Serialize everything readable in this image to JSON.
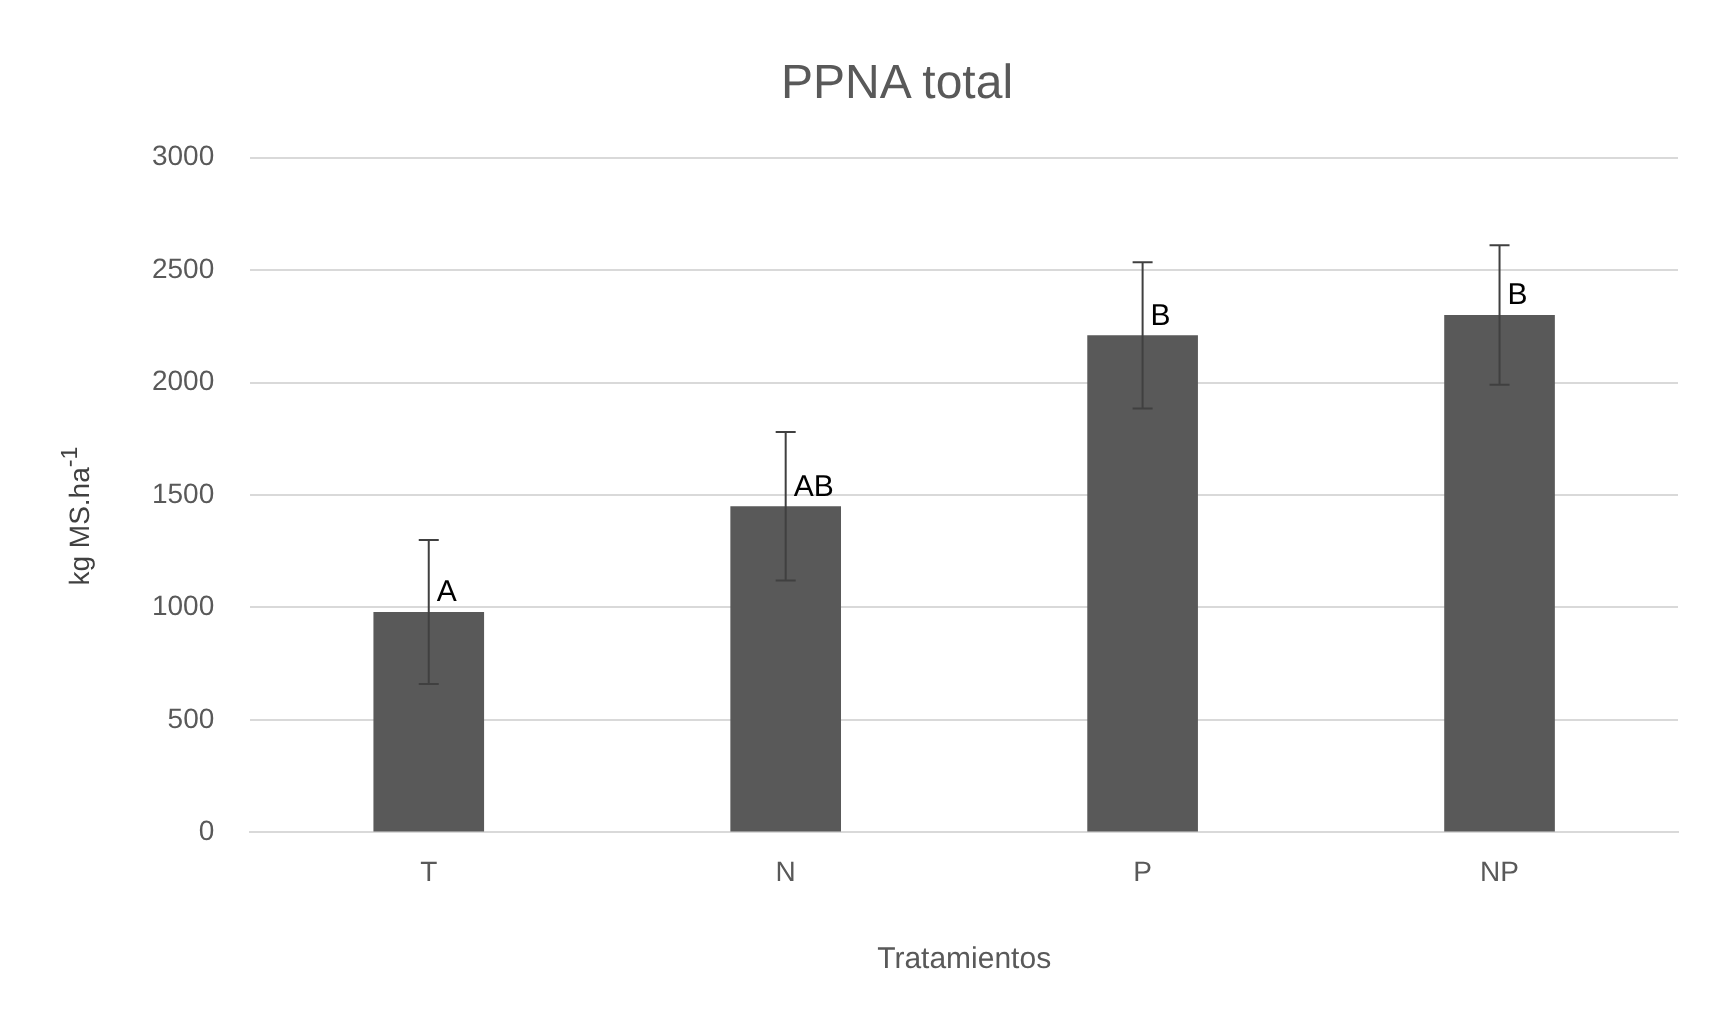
{
  "chart_data": {
    "type": "bar",
    "title": "PPNA total",
    "xlabel": "Tratamientos",
    "ylabel": "kg MS.ha$^{-1}$",
    "categories": [
      "T",
      "N",
      "P",
      "NP"
    ],
    "series": [
      {
        "color": "#595959",
        "values": [
          980,
          1450,
          2210,
          2300
        ],
        "errors": [
          320,
          330,
          325,
          310
        ]
      }
    ],
    "ylim": [
      0,
      3000
    ],
    "yticks": [
      0,
      500,
      1000,
      1500,
      2000,
      2500,
      3000
    ],
    "grid": "y",
    "annotations": [
      {
        "text": "A",
        "x": "T",
        "y": 980
      },
      {
        "text": "AB",
        "x": "N",
        "y": 1450
      },
      {
        "text": "B",
        "x": "P",
        "y": 2210
      },
      {
        "text": "B",
        "x": "NP",
        "y": 2300
      }
    ]
  }
}
